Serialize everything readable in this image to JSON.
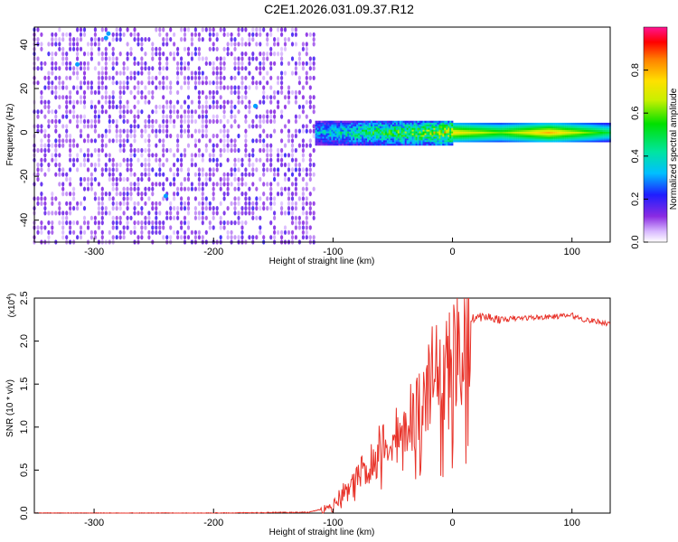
{
  "figure_title": "C2E1.2026.031.09.37.R12",
  "chart_data": [
    {
      "type": "heatmap",
      "xlabel": "Height of straight line (km)",
      "ylabel": "Frequency (Hz)",
      "xlim": [
        -350,
        132
      ],
      "ylim": [
        -50,
        48
      ],
      "x_ticks": [
        -300,
        -200,
        -100,
        0,
        100
      ],
      "y_ticks": [
        -40,
        -20,
        0,
        20,
        40
      ],
      "colorbar": {
        "label": "Normalized spectral amplitude",
        "range": [
          0,
          1
        ],
        "ticks": [
          0.0,
          0.2,
          0.4,
          0.6,
          0.8
        ]
      },
      "regions": [
        {
          "x_range": [
            -350,
            -115
          ],
          "y_range": [
            -50,
            48
          ],
          "description_amplitude": 0.1
        },
        {
          "x_range": [
            -115,
            132
          ],
          "y_center": 0,
          "y_halfwidth": 4,
          "amplitude_profile_x": [
            -115,
            -80,
            -40,
            0,
            40,
            80,
            132
          ],
          "amplitude_profile_val": [
            0.35,
            0.5,
            0.6,
            0.75,
            0.6,
            0.8,
            0.5
          ]
        }
      ]
    },
    {
      "type": "line",
      "xlabel": "Height of straight line (km)",
      "ylabel": "SNR (10 * v/v)",
      "y_multiplier": "(x10^4)",
      "xlim": [
        -350,
        132
      ],
      "ylim": [
        0,
        2.5
      ],
      "x_ticks": [
        -300,
        -200,
        -100,
        0,
        100
      ],
      "y_ticks": [
        "0.0",
        "0.5",
        "1.0",
        "1.5",
        "2.0",
        "2.5"
      ],
      "series": [
        {
          "color": "#e8332a",
          "x": [
            -350,
            -300,
            -200,
            -120,
            -100,
            -90,
            -80,
            -70,
            -60,
            -50,
            -40,
            -30,
            -20,
            -10,
            0,
            5,
            10,
            15,
            20,
            30,
            40,
            60,
            80,
            100,
            110,
            120,
            132
          ],
          "y": [
            0.0,
            0.0,
            0.0,
            0.01,
            0.08,
            0.25,
            0.4,
            0.55,
            0.75,
            0.9,
            1.05,
            1.2,
            1.5,
            1.75,
            1.9,
            2.05,
            2.2,
            2.25,
            2.28,
            2.28,
            2.25,
            2.27,
            2.28,
            2.3,
            2.25,
            2.23,
            2.2
          ]
        }
      ]
    }
  ]
}
